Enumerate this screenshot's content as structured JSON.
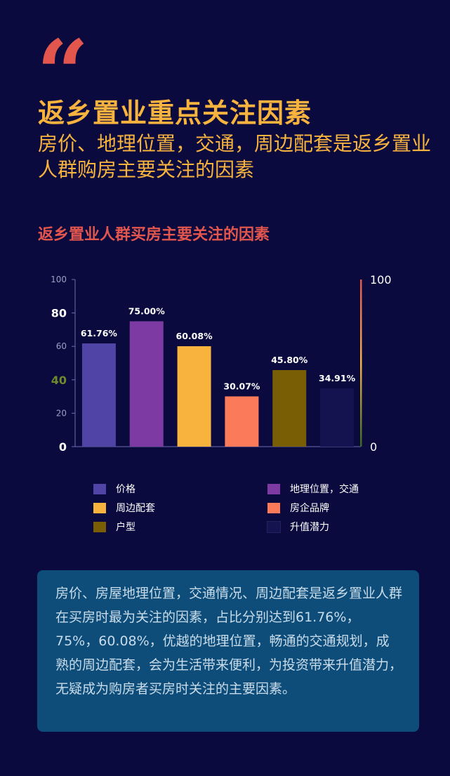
{
  "header": {
    "quote_mark": "“",
    "title": "返乡置业重点关注因素",
    "subtitle": "房价、地理位置，交通，周边配套是返乡置业人群购房主要关注的因素"
  },
  "chart_data": {
    "type": "bar",
    "title": "返乡置业人群买房主要关注的因素",
    "categories": [
      "价格",
      "地理位置，交通",
      "周边配套",
      "房企品牌",
      "户型",
      "升值潜力"
    ],
    "values": [
      61.76,
      75.0,
      60.08,
      30.07,
      45.8,
      34.91
    ],
    "data_labels": [
      "61.76%",
      "75.00%",
      "60.08%",
      "30.07%",
      "45.80%",
      "34.91%"
    ],
    "colors": [
      "#5044a6",
      "#7e3aa3",
      "#f7b33e",
      "#fb7a5a",
      "#7a5e05",
      "#141350"
    ],
    "ylim": [
      0,
      100
    ],
    "yticks": [
      "0",
      "20",
      "40",
      "60",
      "80",
      "100"
    ],
    "ytick_colors": [
      "#ffffff",
      "#9aa0c0",
      "#6f8a2a",
      "#9aa0c0",
      "#ffffff",
      "#9aa0c0"
    ],
    "y2ticks": [
      "0",
      "100"
    ],
    "legend_position": "bottom",
    "grid": false
  },
  "summary": {
    "text": "房价、房屋地理位置，交通情况、周边配套是返乡置业人群在买房时最为关注的因素，占比分别达到61.76%，75%，60.08%，优越的地理位置，畅通的交通规划，成熟的周边配套，会为生活带来便利，为投资带来升值潜力，无疑成为购房者买房时关注的主要因素。"
  }
}
